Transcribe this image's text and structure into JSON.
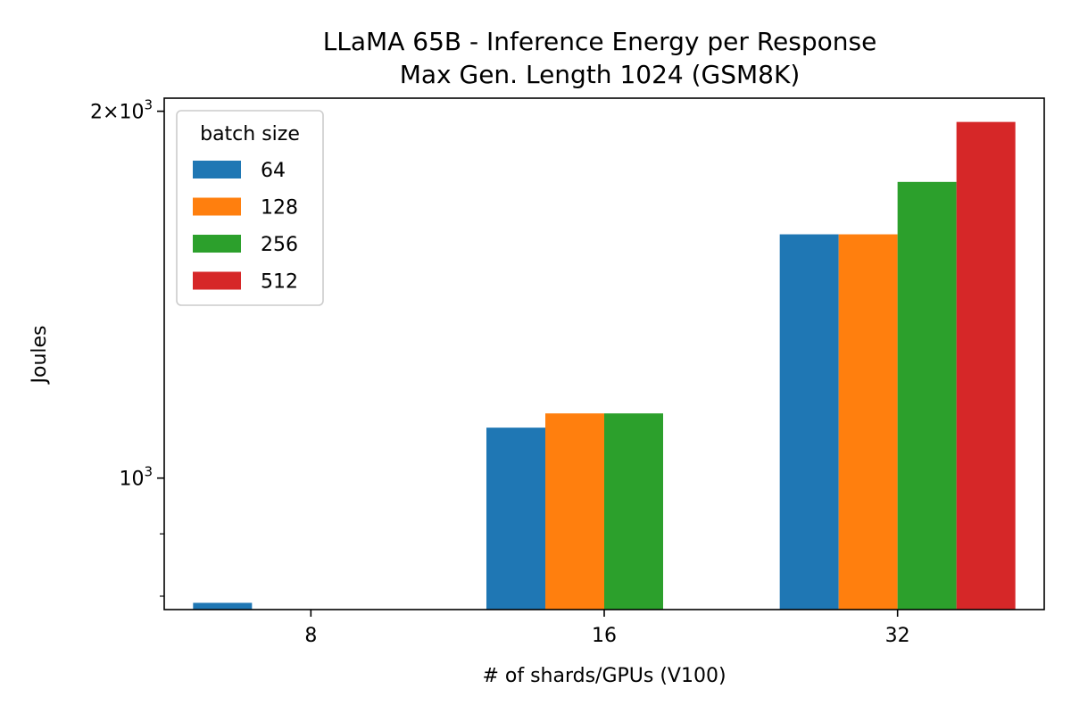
{
  "chart_data": {
    "type": "bar",
    "title": "LLaMA 65B - Inference Energy per Response",
    "subtitle": "Max Gen. Length 1024 (GSM8K)",
    "xlabel": "# of shards/GPUs (V100)",
    "ylabel": "Joules",
    "yscale": "log",
    "ylim": [
      780,
      2050
    ],
    "yticks_major": [
      {
        "value": 1000,
        "base": "10",
        "exp": "3",
        "coef": ""
      },
      {
        "value": 2000,
        "base": "10",
        "exp": "3",
        "coef": "2"
      }
    ],
    "yticks_minor": [
      800,
      900
    ],
    "categories": [
      "8",
      "16",
      "32"
    ],
    "legend_title": "batch size",
    "legend_position": "upper left",
    "grid": false,
    "series": [
      {
        "name": "64",
        "color": "#1f77b4",
        "values": [
          790,
          1100,
          1585
        ]
      },
      {
        "name": "128",
        "color": "#ff7f0e",
        "values": [
          null,
          1130,
          1585
        ]
      },
      {
        "name": "256",
        "color": "#2ca02c",
        "values": [
          null,
          1130,
          1750
        ]
      },
      {
        "name": "512",
        "color": "#d62728",
        "values": [
          null,
          null,
          1960
        ]
      }
    ]
  }
}
